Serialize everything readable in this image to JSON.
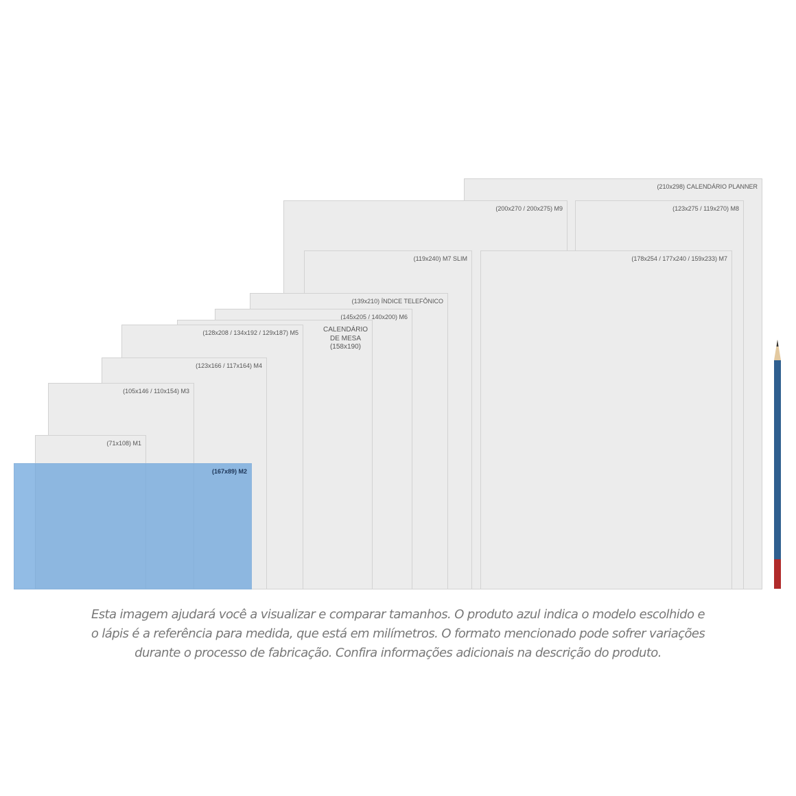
{
  "formats": [
    {
      "label": "(210x298) CALENDÁRIO PLANNER",
      "selected": false
    },
    {
      "label": "(200x270 / 200x275) M9",
      "selected": false
    },
    {
      "label": "(123x275 / 119x270) M8",
      "selected": false
    },
    {
      "label": "(119x240) M7 SLIM",
      "selected": false
    },
    {
      "label": "(178x254 / 177x240 / 159x233) M7",
      "selected": false
    },
    {
      "label": "(139x210) ÍNDICE TELEFÔNICO",
      "selected": false
    },
    {
      "label": "(145x205 / 140x200) M6",
      "selected": false
    },
    {
      "label": "CALENDÁRIO\nDE MESA\n(158x190)",
      "selected": false
    },
    {
      "label": "(128x208 / 134x192 / 129x187) M5",
      "selected": false
    },
    {
      "label": "(123x166 / 117x164) M4",
      "selected": false
    },
    {
      "label": "(105x146 / 110x154) M3",
      "selected": false
    },
    {
      "label": "(71x108) M1",
      "selected": false
    },
    {
      "label": "(167x89) M2",
      "selected": true
    }
  ],
  "colors": {
    "selected": "#8fb8e0",
    "pencil_body": "#2f5f8f",
    "pencil_end": "#b02a2a"
  },
  "caption": [
    "Esta imagem ajudará você a visualizar e comparar tamanhos. O produto azul indica o modelo escolhido e",
    "o lápis é a referência para medida, que está em milímetros. O formato mencionado pode sofrer variações",
    "durante o processo de fabricação. Confira informações adicionais na descrição do produto."
  ]
}
